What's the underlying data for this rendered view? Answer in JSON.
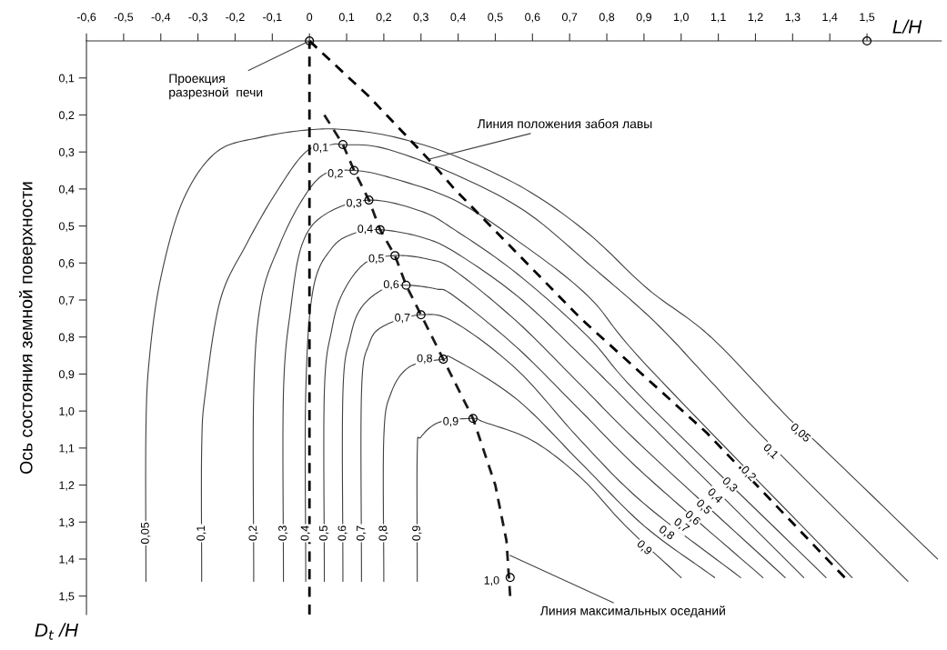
{
  "chart_data": {
    "type": "line",
    "xlabel": "L/H",
    "ylabel": "Ось состояния земной поверхности",
    "xlim": [
      -0.6,
      1.7
    ],
    "ylim": [
      1.55,
      0
    ],
    "xticks": [
      {
        "value": -0.6,
        "label": "-0,6"
      },
      {
        "value": -0.5,
        "label": "-0,5"
      },
      {
        "value": -0.4,
        "label": "-0,4"
      },
      {
        "value": -0.3,
        "label": "-0,3"
      },
      {
        "value": -0.2,
        "label": "-0,2"
      },
      {
        "value": -0.1,
        "label": "-0,1"
      },
      {
        "value": 0,
        "label": "0"
      },
      {
        "value": 0.1,
        "label": "0,1"
      },
      {
        "value": 0.2,
        "label": "0,2"
      },
      {
        "value": 0.3,
        "label": "0,3"
      },
      {
        "value": 0.4,
        "label": "0,4"
      },
      {
        "value": 0.5,
        "label": "0,5"
      },
      {
        "value": 0.6,
        "label": "0,6"
      },
      {
        "value": 0.7,
        "label": "0,7"
      },
      {
        "value": 0.8,
        "label": "0,8"
      },
      {
        "value": 0.9,
        "label": "0,9"
      },
      {
        "value": 1.0,
        "label": "1,0"
      },
      {
        "value": 1.1,
        "label": "1,1"
      },
      {
        "value": 1.2,
        "label": "1,2"
      },
      {
        "value": 1.3,
        "label": "1,3"
      },
      {
        "value": 1.4,
        "label": "1,4"
      },
      {
        "value": 1.5,
        "label": "1,5"
      }
    ],
    "yticks": [
      {
        "value": 0.1,
        "label": "0,1"
      },
      {
        "value": 0.2,
        "label": "0,2"
      },
      {
        "value": 0.3,
        "label": "0,3"
      },
      {
        "value": 0.4,
        "label": "0,4"
      },
      {
        "value": 0.5,
        "label": "0,5"
      },
      {
        "value": 0.6,
        "label": "0,6"
      },
      {
        "value": 0.7,
        "label": "0,7"
      },
      {
        "value": 0.8,
        "label": "0,8"
      },
      {
        "value": 0.9,
        "label": "0,9"
      },
      {
        "value": 1.0,
        "label": "1,0"
      },
      {
        "value": 1.1,
        "label": "1,1"
      },
      {
        "value": 1.2,
        "label": "1,2"
      },
      {
        "value": 1.3,
        "label": "1,3"
      },
      {
        "value": 1.4,
        "label": "1,4"
      },
      {
        "value": 1.5,
        "label": "1,5"
      }
    ],
    "series": [
      {
        "color": "#404040",
        "line_style": "solid",
        "x": [
          -0.44,
          -0.44,
          -0.43,
          -0.4,
          -0.34,
          -0.25,
          -0.13,
          0,
          0.1,
          0.23,
          0.39,
          0.58,
          0.75,
          0.91,
          1.08,
          1.29,
          1.37,
          1.69
        ],
        "values": [
          1.46,
          1.05,
          0.85,
          0.64,
          0.43,
          0.3,
          0.26,
          0.24,
          0.24,
          0.26,
          0.31,
          0.4,
          0.52,
          0.67,
          0.8,
          1.02,
          1.09,
          1.4
        ]
      },
      {
        "color": "#404040",
        "line_style": "solid",
        "x": [
          -0.29,
          -0.29,
          -0.28,
          -0.24,
          -0.17,
          -0.09,
          -0.01,
          0.06,
          0.09,
          0.2,
          0.39,
          0.58,
          0.76,
          0.93,
          1.08,
          1.22,
          1.61
        ],
        "values": [
          1.46,
          1.1,
          0.95,
          0.7,
          0.55,
          0.41,
          0.3,
          0.28,
          0.28,
          0.29,
          0.36,
          0.46,
          0.61,
          0.76,
          0.92,
          1.07,
          1.46
        ]
      },
      {
        "color": "#404040",
        "line_style": "solid",
        "x": [
          -0.15,
          -0.15,
          -0.13,
          -0.08,
          -0.02,
          0.04,
          0.12,
          0.22,
          0.39,
          0.56,
          0.75,
          0.91,
          1.46
        ],
        "values": [
          1.46,
          0.95,
          0.7,
          0.55,
          0.43,
          0.36,
          0.35,
          0.37,
          0.43,
          0.54,
          0.69,
          0.88,
          1.45
        ]
      },
      {
        "color": "#404040",
        "line_style": "solid",
        "x": [
          -0.07,
          -0.07,
          -0.05,
          -0.02,
          0.04,
          0.16,
          0.3,
          0.39,
          0.56,
          0.75,
          0.9,
          1.39
        ],
        "values": [
          1.46,
          0.95,
          0.72,
          0.55,
          0.47,
          0.43,
          0.46,
          0.51,
          0.63,
          0.8,
          0.97,
          1.45
        ]
      },
      {
        "color": "#404040",
        "line_style": "solid",
        "x": [
          -0.01,
          -0.01,
          0.01,
          0.06,
          0.12,
          0.19,
          0.3,
          0.39,
          0.56,
          0.73,
          0.9,
          1.33
        ],
        "values": [
          1.46,
          0.95,
          0.67,
          0.56,
          0.52,
          0.51,
          0.53,
          0.57,
          0.69,
          0.85,
          1.02,
          1.45
        ]
      },
      {
        "color": "#404040",
        "line_style": "solid",
        "x": [
          0.04,
          0.04,
          0.06,
          0.09,
          0.15,
          0.23,
          0.32,
          0.39,
          0.56,
          0.73,
          0.9,
          1.28
        ],
        "values": [
          1.46,
          0.95,
          0.78,
          0.68,
          0.6,
          0.58,
          0.59,
          0.62,
          0.76,
          0.93,
          1.1,
          1.45
        ]
      },
      {
        "color": "#404040",
        "line_style": "solid",
        "x": [
          0.09,
          0.09,
          0.11,
          0.14,
          0.2,
          0.26,
          0.34,
          0.39,
          0.56,
          0.73,
          0.9,
          1.22
        ],
        "values": [
          1.46,
          0.95,
          0.8,
          0.72,
          0.67,
          0.66,
          0.67,
          0.69,
          0.83,
          1.0,
          1.17,
          1.45
        ]
      },
      {
        "color": "#404040",
        "line_style": "solid",
        "x": [
          0.14,
          0.14,
          0.16,
          0.2,
          0.3,
          0.39,
          0.56,
          0.73,
          0.9,
          1.16
        ],
        "values": [
          1.46,
          0.95,
          0.82,
          0.77,
          0.74,
          0.76,
          0.89,
          1.08,
          1.25,
          1.45
        ]
      },
      {
        "color": "#404040",
        "line_style": "solid",
        "x": [
          0.2,
          0.2,
          0.22,
          0.27,
          0.36,
          0.39,
          0.56,
          0.73,
          0.9,
          1.09
        ],
        "values": [
          1.46,
          1.07,
          0.95,
          0.88,
          0.86,
          0.86,
          0.97,
          1.14,
          1.31,
          1.45
        ]
      },
      {
        "color": "#404040",
        "line_style": "solid",
        "x": [
          0.29,
          0.29,
          0.3,
          0.35,
          0.44,
          0.47,
          0.6,
          0.73,
          0.85,
          1.0
        ],
        "values": [
          1.46,
          1.11,
          1.07,
          1.03,
          1.02,
          1.03,
          1.08,
          1.18,
          1.31,
          1.45
        ]
      },
      {
        "color": "#000000",
        "line_style": "dashed",
        "x": [
          0,
          0.16,
          0.33,
          0.39,
          0.73,
          1.07,
          1.44
        ],
        "values": [
          0,
          0.15,
          0.33,
          0.4,
          0.75,
          1.06,
          1.45
        ]
      },
      {
        "color": "#1a1a1a",
        "line_style": "dashed",
        "x": [
          0.04,
          0.09,
          0.12,
          0.16,
          0.19,
          0.23,
          0.26,
          0.3,
          0.36,
          0.44,
          0.5,
          0.53,
          0.54
        ],
        "values": [
          0.2,
          0.28,
          0.35,
          0.43,
          0.51,
          0.58,
          0.66,
          0.74,
          0.86,
          1.02,
          1.2,
          1.35,
          1.5
        ]
      },
      {
        "type": "scatter",
        "color": "#000000",
        "marker": "circle",
        "x": [
          0.09,
          0.12,
          0.16,
          0.19,
          0.23,
          0.26,
          0.3,
          0.36,
          0.44,
          0.54
        ],
        "values": [
          0.28,
          0.35,
          0.43,
          0.51,
          0.58,
          0.66,
          0.74,
          0.86,
          1.02,
          1.45
        ]
      },
      {
        "type": "scatter",
        "color": "#000000",
        "marker": "circle",
        "x": [
          0,
          1.5
        ],
        "values": [
          0,
          0
        ]
      }
    ],
    "ref_lines": [
      {
        "axis": "x",
        "value": 0,
        "color": "#000000",
        "line_style": "dashed"
      }
    ],
    "annotations": [
      {
        "text": "Проекция\nразрезной  печи",
        "x": 0,
        "y": 0
      },
      {
        "text": "Линия положения забоя лавы",
        "x": 0.32,
        "y": 0.32
      },
      {
        "text": "Линия максимальных оседаний",
        "x": 0.54,
        "y": 1.39
      },
      "D$_{t}$ /H",
      {
        "text": "0,05",
        "x": -0.44,
        "y": 1.33
      },
      {
        "text": "0,1",
        "x": -0.29,
        "y": 1.33
      },
      {
        "text": "0,2",
        "x": -0.15,
        "y": 1.33
      },
      {
        "text": "0,3",
        "x": -0.07,
        "y": 1.33
      },
      {
        "text": "0,4",
        "x": -0.01,
        "y": 1.33
      },
      {
        "text": "0,5",
        "x": 0.04,
        "y": 1.33
      },
      {
        "text": "0,6",
        "x": 0.09,
        "y": 1.33
      },
      {
        "text": "0,7",
        "x": 0.14,
        "y": 1.33
      },
      {
        "text": "0,8",
        "x": 0.2,
        "y": 1.33
      },
      {
        "text": "0,9",
        "x": 0.29,
        "y": 1.33
      },
      {
        "text": "0,05",
        "x": 1.32,
        "y": 1.06
      },
      {
        "text": "0,1",
        "x": 1.24,
        "y": 1.11
      },
      {
        "text": "0,2",
        "x": 1.18,
        "y": 1.17
      },
      {
        "text": "0,3",
        "x": 1.13,
        "y": 1.2
      },
      {
        "text": "0,4",
        "x": 1.09,
        "y": 1.23
      },
      {
        "text": "0,5",
        "x": 1.06,
        "y": 1.26
      },
      {
        "text": "0,6",
        "x": 1.03,
        "y": 1.29
      },
      {
        "text": "0,7",
        "x": 1.0,
        "y": 1.31
      },
      {
        "text": "0,8",
        "x": 0.96,
        "y": 1.33
      },
      {
        "text": "0,9",
        "x": 0.9,
        "y": 1.37
      },
      {
        "text": "0,1",
        "x": 0.03,
        "y": 0.29
      },
      {
        "text": "0,2",
        "x": 0.07,
        "y": 0.36
      },
      {
        "text": "0,3",
        "x": 0.12,
        "y": 0.44
      },
      {
        "text": "0,4",
        "x": 0.15,
        "y": 0.51
      },
      {
        "text": "0,5",
        "x": 0.18,
        "y": 0.59
      },
      {
        "text": "0,6",
        "x": 0.22,
        "y": 0.66
      },
      {
        "text": "0,7",
        "x": 0.25,
        "y": 0.75
      },
      {
        "text": "0,8",
        "x": 0.31,
        "y": 0.86
      },
      {
        "text": "0,9",
        "x": 0.38,
        "y": 1.03
      },
      {
        "text": "1,0",
        "x": 0.49,
        "y": 1.46
      }
    ]
  }
}
